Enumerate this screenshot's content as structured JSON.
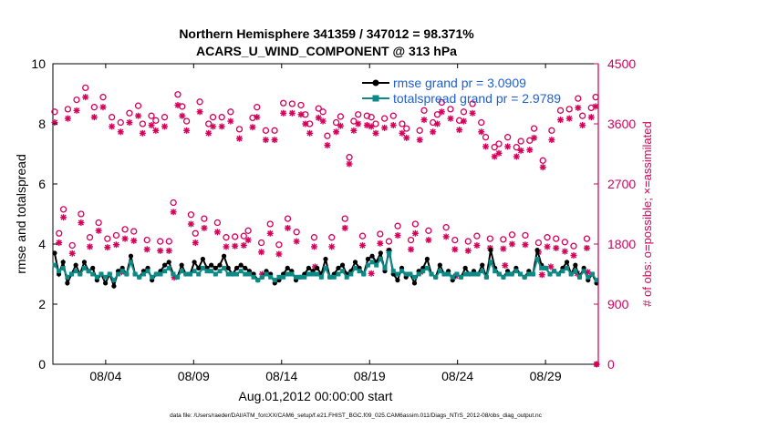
{
  "chart_data": {
    "type": "line",
    "title": "Northern Hemisphere 341359 / 347012 = 98.371%",
    "subtitle": "ACARS_U_WIND_COMPONENT @ 313 hPa",
    "xlabel": "Aug.01,2012 00:00:00 start",
    "ylabel_left": "rmse and totalspread",
    "ylabel_right": "# of obs: o=possible; ×=assimilated",
    "footnote": "data file: /Users/raeder/DAI/ATM_forcXX/CAM6_setup/f.e21.FHIST_BGC.f09_025.CAM6assim.011/Diags_NTrS_2012-08/obs_diag_output.nc",
    "x_ticks": [
      {
        "day": 4,
        "label": "08/04"
      },
      {
        "day": 9,
        "label": "08/09"
      },
      {
        "day": 14,
        "label": "08/14"
      },
      {
        "day": 19,
        "label": "08/19"
      },
      {
        "day": 24,
        "label": "08/24"
      },
      {
        "day": 29,
        "label": "08/29"
      }
    ],
    "xlim": [
      1.0,
      32.0
    ],
    "ylim_left": [
      0,
      10
    ],
    "ylim_right": [
      0,
      4500
    ],
    "y_ticks_left": [
      "0",
      "2",
      "4",
      "6",
      "8",
      "10"
    ],
    "y_ticks_right": [
      "0",
      "900",
      "1800",
      "2700",
      "3600",
      "4500"
    ],
    "legend_position": "top-right",
    "colors": {
      "rmse": "#000000",
      "totalspread": "#0b8a86",
      "obs": "#d6005a",
      "title": "#000000"
    },
    "series": [
      {
        "name": "rmse grand pr = 3.0909",
        "axis": "left",
        "values": [
          3.7,
          3.0,
          3.4,
          2.7,
          3.0,
          3.3,
          3.0,
          3.4,
          3.1,
          3.2,
          2.8,
          3.0,
          2.7,
          3.0,
          2.6,
          3.1,
          3.2,
          3.0,
          3.6,
          3.0,
          2.9,
          3.1,
          3.2,
          2.8,
          3.0,
          3.1,
          3.3,
          3.4,
          3.0,
          2.9,
          3.3,
          3.0,
          3.0,
          3.4,
          3.2,
          3.5,
          3.2,
          3.3,
          3.2,
          3.3,
          3.6,
          3.2,
          3.0,
          3.2,
          3.3,
          3.2,
          3.1,
          3.0,
          2.8,
          2.9,
          3.1,
          3.0,
          2.7,
          2.8,
          3.0,
          3.2,
          3.1,
          2.8,
          2.9,
          3.0,
          3.2,
          3.1,
          3.2,
          3.0,
          3.5,
          2.9,
          3.0,
          3.2,
          3.3,
          3.0,
          3.1,
          3.4,
          3.2,
          3.0,
          3.5,
          3.6,
          3.4,
          3.7,
          3.1,
          3.8,
          3.0,
          2.8,
          3.2,
          2.9,
          3.0,
          2.7,
          3.1,
          3.2,
          3.5,
          3.0,
          2.9,
          3.3,
          3.0,
          3.1,
          2.8,
          3.0,
          2.9,
          3.2,
          3.0,
          3.1,
          3.0,
          3.3,
          2.9,
          3.8,
          3.2,
          3.0,
          2.9,
          3.1,
          3.0,
          3.2,
          3.0,
          2.9,
          3.1,
          3.0,
          3.8,
          3.3,
          3.2,
          3.0,
          3.1,
          3.0,
          3.2,
          3.4,
          3.0,
          3.3,
          2.9,
          3.2,
          2.8,
          3.0,
          2.7
        ],
        "markers": "filled-circle"
      },
      {
        "name": "totalspread grand pr = 2.9789",
        "axis": "left",
        "values": [
          3.3,
          3.1,
          3.2,
          2.9,
          3.0,
          3.1,
          3.0,
          3.2,
          3.1,
          3.0,
          2.9,
          3.0,
          2.9,
          3.0,
          2.8,
          3.0,
          3.1,
          3.0,
          3.4,
          3.0,
          2.9,
          3.0,
          3.1,
          2.9,
          3.0,
          3.0,
          3.1,
          3.2,
          3.0,
          2.9,
          3.1,
          3.0,
          3.0,
          3.1,
          3.0,
          3.2,
          3.1,
          3.1,
          3.0,
          3.1,
          3.2,
          3.0,
          3.0,
          3.0,
          3.1,
          3.0,
          3.0,
          2.9,
          2.8,
          2.9,
          3.0,
          2.9,
          2.8,
          2.9,
          2.9,
          3.0,
          3.0,
          2.9,
          2.9,
          2.9,
          3.0,
          3.0,
          3.0,
          2.9,
          3.2,
          2.9,
          2.9,
          3.0,
          3.1,
          2.9,
          3.0,
          3.2,
          3.1,
          3.0,
          3.3,
          3.4,
          3.3,
          3.5,
          3.2,
          3.7,
          3.1,
          3.0,
          3.1,
          3.0,
          3.0,
          2.9,
          3.0,
          3.1,
          3.2,
          3.0,
          2.9,
          3.1,
          3.0,
          3.0,
          2.9,
          3.0,
          2.9,
          3.0,
          3.0,
          3.0,
          3.0,
          3.1,
          2.9,
          3.4,
          3.1,
          3.0,
          2.9,
          3.0,
          3.0,
          3.1,
          3.0,
          2.9,
          3.0,
          3.0,
          3.5,
          3.2,
          3.2,
          3.0,
          3.1,
          3.0,
          3.1,
          3.2,
          3.0,
          3.1,
          2.9,
          3.1,
          2.9,
          3.0,
          2.8
        ],
        "markers": "filled-square"
      }
    ],
    "obs_possible": {
      "axis": "right",
      "marker": "open-circle",
      "points": [
        [
          1.1,
          3780
        ],
        [
          1.35,
          1960
        ],
        [
          1.6,
          2320
        ],
        [
          1.85,
          3820
        ],
        [
          2.1,
          1780
        ],
        [
          2.35,
          3960
        ],
        [
          2.6,
          2250
        ],
        [
          2.85,
          4140
        ],
        [
          3.1,
          1900
        ],
        [
          3.35,
          3850
        ],
        [
          3.6,
          2120
        ],
        [
          3.85,
          4000
        ],
        [
          4.1,
          1880
        ],
        [
          4.35,
          3700
        ],
        [
          4.6,
          1930
        ],
        [
          4.85,
          3620
        ],
        [
          5.1,
          2020
        ],
        [
          5.35,
          3760
        ],
        [
          5.6,
          1990
        ],
        [
          5.85,
          3870
        ],
        [
          6.1,
          3600
        ],
        [
          6.35,
          1860
        ],
        [
          6.6,
          3720
        ],
        [
          6.85,
          3650
        ],
        [
          7.1,
          1840
        ],
        [
          7.35,
          3700
        ],
        [
          7.6,
          1840
        ],
        [
          7.85,
          2420
        ],
        [
          8.1,
          4040
        ],
        [
          8.35,
          3860
        ],
        [
          8.6,
          3640
        ],
        [
          8.85,
          2240
        ],
        [
          9.1,
          1960
        ],
        [
          9.35,
          3930
        ],
        [
          9.6,
          2180
        ],
        [
          9.85,
          3600
        ],
        [
          10.1,
          3700
        ],
        [
          10.35,
          2120
        ],
        [
          10.6,
          3700
        ],
        [
          10.85,
          1900
        ],
        [
          11.1,
          3780
        ],
        [
          11.35,
          1910
        ],
        [
          11.6,
          3520
        ],
        [
          11.85,
          1920
        ],
        [
          12.1,
          2000
        ],
        [
          12.35,
          3690
        ],
        [
          12.6,
          3850
        ],
        [
          12.85,
          1820
        ],
        [
          13.1,
          3500
        ],
        [
          13.35,
          2100
        ],
        [
          13.6,
          3500
        ],
        [
          13.85,
          1790
        ],
        [
          14.1,
          3910
        ],
        [
          14.35,
          2180
        ],
        [
          14.6,
          3900
        ],
        [
          14.85,
          1980
        ],
        [
          15.1,
          3880
        ],
        [
          15.35,
          3740
        ],
        [
          15.6,
          3600
        ],
        [
          15.85,
          1900
        ],
        [
          16.1,
          3830
        ],
        [
          16.35,
          3780
        ],
        [
          16.6,
          3420
        ],
        [
          16.85,
          1900
        ],
        [
          17.1,
          3620
        ],
        [
          17.35,
          3710
        ],
        [
          17.6,
          2180
        ],
        [
          17.85,
          3100
        ],
        [
          18.1,
          3640
        ],
        [
          18.35,
          3740
        ],
        [
          18.6,
          1920
        ],
        [
          18.85,
          3720
        ],
        [
          19.1,
          3700
        ],
        [
          19.35,
          3600
        ],
        [
          19.6,
          1950
        ],
        [
          19.85,
          3680
        ],
        [
          20.1,
          1840
        ],
        [
          20.35,
          3720
        ],
        [
          20.6,
          2070
        ],
        [
          20.85,
          3600
        ],
        [
          21.1,
          3530
        ],
        [
          21.35,
          1860
        ],
        [
          21.6,
          2100
        ],
        [
          21.85,
          3500
        ],
        [
          22.1,
          3800
        ],
        [
          22.35,
          2000
        ],
        [
          22.6,
          3620
        ],
        [
          22.85,
          3740
        ],
        [
          23.1,
          3920
        ],
        [
          23.35,
          2050
        ],
        [
          23.6,
          3820
        ],
        [
          23.85,
          1860
        ],
        [
          24.1,
          3650
        ],
        [
          24.35,
          3780
        ],
        [
          24.6,
          1840
        ],
        [
          24.85,
          3900
        ],
        [
          25.1,
          1920
        ],
        [
          25.35,
          3620
        ],
        [
          25.6,
          3400
        ],
        [
          25.85,
          1880
        ],
        [
          26.1,
          3250
        ],
        [
          26.35,
          3300
        ],
        [
          26.6,
          1870
        ],
        [
          26.85,
          3400
        ],
        [
          27.1,
          1940
        ],
        [
          27.35,
          3250
        ],
        [
          27.6,
          3340
        ],
        [
          27.85,
          1930
        ],
        [
          28.1,
          3350
        ],
        [
          28.35,
          3530
        ],
        [
          28.6,
          1820
        ],
        [
          28.85,
          3050
        ],
        [
          29.1,
          1900
        ],
        [
          29.35,
          3500
        ],
        [
          29.6,
          1880
        ],
        [
          29.85,
          3800
        ],
        [
          30.1,
          1830
        ],
        [
          30.35,
          3820
        ],
        [
          30.6,
          1770
        ],
        [
          30.85,
          3980
        ],
        [
          31.1,
          3720
        ],
        [
          31.35,
          1880
        ],
        [
          31.6,
          3840
        ],
        [
          31.85,
          4000
        ]
      ]
    },
    "obs_assimilated": {
      "axis": "right",
      "marker": "asterisk",
      "points": [
        [
          1.1,
          3620
        ],
        [
          1.35,
          1820
        ],
        [
          1.6,
          2200
        ],
        [
          1.85,
          3680
        ],
        [
          2.1,
          1660
        ],
        [
          2.35,
          3800
        ],
        [
          2.6,
          2120
        ],
        [
          2.85,
          4000
        ],
        [
          3.1,
          1760
        ],
        [
          3.35,
          3700
        ],
        [
          3.6,
          2000
        ],
        [
          3.85,
          3850
        ],
        [
          4.1,
          1750
        ],
        [
          4.35,
          3560
        ],
        [
          4.6,
          1790
        ],
        [
          4.85,
          3480
        ],
        [
          5.1,
          1880
        ],
        [
          5.35,
          3620
        ],
        [
          5.6,
          1850
        ],
        [
          5.85,
          3720
        ],
        [
          6.1,
          3460
        ],
        [
          6.35,
          1720
        ],
        [
          6.6,
          3580
        ],
        [
          6.85,
          3500
        ],
        [
          7.1,
          1700
        ],
        [
          7.35,
          3560
        ],
        [
          7.6,
          1700
        ],
        [
          7.85,
          2280
        ],
        [
          8.1,
          3880
        ],
        [
          8.35,
          3720
        ],
        [
          8.6,
          3500
        ],
        [
          8.85,
          2100
        ],
        [
          9.1,
          1820
        ],
        [
          9.35,
          3780
        ],
        [
          9.6,
          2040
        ],
        [
          9.85,
          3460
        ],
        [
          10.1,
          3560
        ],
        [
          10.35,
          1980
        ],
        [
          10.6,
          3560
        ],
        [
          10.85,
          1760
        ],
        [
          11.1,
          3640
        ],
        [
          11.35,
          1770
        ],
        [
          11.6,
          3380
        ],
        [
          11.85,
          1780
        ],
        [
          12.1,
          1860
        ],
        [
          12.35,
          3550
        ],
        [
          12.6,
          3700
        ],
        [
          12.85,
          1680
        ],
        [
          13.1,
          3360
        ],
        [
          13.35,
          1960
        ],
        [
          13.6,
          3360
        ],
        [
          13.85,
          1650
        ],
        [
          14.1,
          3760
        ],
        [
          14.35,
          2040
        ],
        [
          14.6,
          3760
        ],
        [
          14.85,
          1840
        ],
        [
          15.1,
          3740
        ],
        [
          15.35,
          3600
        ],
        [
          15.6,
          3460
        ],
        [
          15.85,
          1760
        ],
        [
          16.1,
          3690
        ],
        [
          16.35,
          3640
        ],
        [
          16.6,
          3280
        ],
        [
          16.85,
          1760
        ],
        [
          17.1,
          3480
        ],
        [
          17.35,
          3570
        ],
        [
          17.6,
          2040
        ],
        [
          17.85,
          3000
        ],
        [
          18.1,
          3500
        ],
        [
          18.35,
          3600
        ],
        [
          18.6,
          1780
        ],
        [
          18.85,
          3580
        ],
        [
          19.1,
          3560
        ],
        [
          19.35,
          3460
        ],
        [
          19.6,
          1810
        ],
        [
          19.85,
          3540
        ],
        [
          20.1,
          1700
        ],
        [
          20.35,
          3580
        ],
        [
          20.6,
          1930
        ],
        [
          20.85,
          3460
        ],
        [
          21.1,
          3390
        ],
        [
          21.35,
          1720
        ],
        [
          21.6,
          1960
        ],
        [
          21.85,
          3360
        ],
        [
          22.1,
          3660
        ],
        [
          22.35,
          1860
        ],
        [
          22.6,
          3480
        ],
        [
          22.85,
          3600
        ],
        [
          23.1,
          3780
        ],
        [
          23.35,
          1910
        ],
        [
          23.6,
          3680
        ],
        [
          23.85,
          1720
        ],
        [
          24.1,
          3510
        ],
        [
          24.35,
          3640
        ],
        [
          24.6,
          1700
        ],
        [
          24.85,
          3760
        ],
        [
          25.1,
          1780
        ],
        [
          25.35,
          3480
        ],
        [
          25.6,
          3260
        ],
        [
          25.85,
          1740
        ],
        [
          26.1,
          3110
        ],
        [
          26.35,
          3160
        ],
        [
          26.6,
          1730
        ],
        [
          26.85,
          3260
        ],
        [
          27.1,
          1800
        ],
        [
          27.35,
          3110
        ],
        [
          27.6,
          3200
        ],
        [
          27.85,
          1790
        ],
        [
          28.1,
          3210
        ],
        [
          28.35,
          3390
        ],
        [
          28.6,
          1680
        ],
        [
          28.85,
          2950
        ],
        [
          29.1,
          1760
        ],
        [
          29.35,
          3360
        ],
        [
          29.6,
          1740
        ],
        [
          29.85,
          3660
        ],
        [
          30.1,
          1690
        ],
        [
          30.35,
          3680
        ],
        [
          30.6,
          1630
        ],
        [
          30.85,
          3840
        ],
        [
          31.1,
          3580
        ],
        [
          31.35,
          1740
        ],
        [
          31.6,
          3700
        ],
        [
          31.85,
          3860
        ]
      ]
    },
    "obs_assimilated_low": {
      "axis": "right",
      "marker": "asterisk",
      "points": [
        [
          4.9,
          1380
        ],
        [
          7.9,
          1300
        ],
        [
          12.9,
          1350
        ],
        [
          15.9,
          1460
        ],
        [
          19.1,
          1360
        ],
        [
          21.9,
          1380
        ],
        [
          23.9,
          1320
        ],
        [
          26.7,
          1480
        ],
        [
          28.8,
          1340
        ],
        [
          29.3,
          1460
        ],
        [
          30.8,
          1360
        ],
        [
          31.4,
          1380
        ],
        [
          31.9,
          0
        ]
      ]
    }
  }
}
